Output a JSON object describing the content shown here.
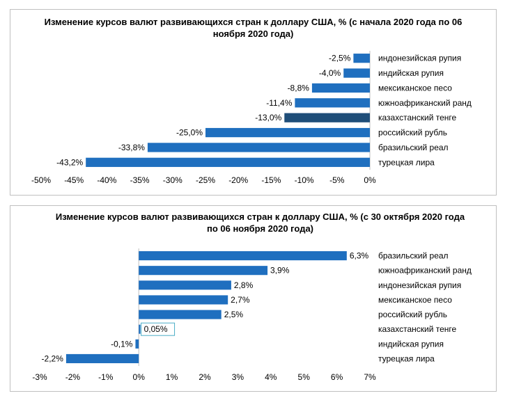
{
  "chart_data": [
    {
      "type": "bar",
      "orientation": "horizontal",
      "title": "Изменение курсов валют развивающихся стран к доллару США, % (с начала 2020 года по 06 ноября 2020 года)",
      "categories": [
        "индонезийская рупия",
        "индийская рупия",
        "мексиканское песо",
        "южноафриканский ранд",
        "казахстанский тенге",
        "российский рубль",
        "бразильский реал",
        "турецкая лира"
      ],
      "values": [
        -2.5,
        -4.0,
        -8.8,
        -11.4,
        -13.0,
        -25.0,
        -33.8,
        -43.2
      ],
      "value_labels": [
        "-2,5%",
        "-4,0%",
        "-8,8%",
        "-11,4%",
        "-13,0%",
        "-25,0%",
        "-33,8%",
        "-43,2%"
      ],
      "xlim": [
        -50,
        0
      ],
      "ticks": [
        -50,
        -45,
        -40,
        -35,
        -30,
        -25,
        -20,
        -15,
        -10,
        -5,
        0
      ],
      "tick_labels": [
        "-50%",
        "-45%",
        "-40%",
        "-35%",
        "-30%",
        "-25%",
        "-20%",
        "-15%",
        "-10%",
        "-5%",
        "0%"
      ],
      "grid": false,
      "bar_color": "#1f6fbf",
      "highlight_color": "#1f4e79",
      "highlight_index": 4
    },
    {
      "type": "bar",
      "orientation": "horizontal",
      "title": "Изменение курсов валют развивающихся стран к доллару США, % (с 30 октября 2020 года по 06 ноября 2020 года)",
      "categories": [
        "бразильский реал",
        "южноафриканский ранд",
        "индонезийская рупия",
        "мексиканское песо",
        "российский рубль",
        "казахстанский тенге",
        "индийская рупия",
        "турецкая лира"
      ],
      "values": [
        6.3,
        3.9,
        2.8,
        2.7,
        2.5,
        0.05,
        -0.1,
        -2.2
      ],
      "value_labels": [
        "6,3%",
        "3,9%",
        "2,8%",
        "2,7%",
        "2,5%",
        "0,05%",
        "-0,1%",
        "-2,2%"
      ],
      "xlim": [
        -3,
        7
      ],
      "ticks": [
        -3,
        -2,
        -1,
        0,
        1,
        2,
        3,
        4,
        5,
        6,
        7
      ],
      "tick_labels": [
        "-3%",
        "-2%",
        "-1%",
        "0%",
        "1%",
        "2%",
        "3%",
        "4%",
        "5%",
        "6%",
        "7%"
      ],
      "grid": false,
      "bar_color": "#1f6fbf",
      "boxed_label_index": 5,
      "box_color": "#4bacc6"
    }
  ]
}
